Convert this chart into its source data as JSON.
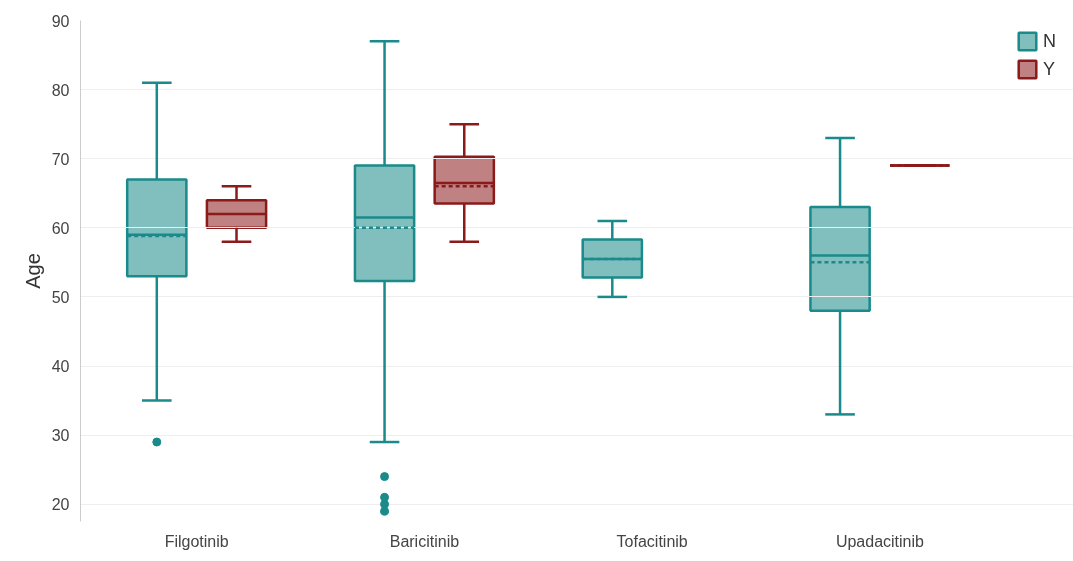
{
  "chart_data": {
    "type": "box",
    "ylabel": "Age",
    "categories": [
      "Filgotinib",
      "Baricitinib",
      "Tofacitinib",
      "Upadacitinib"
    ],
    "ylim": [
      17.5,
      90
    ],
    "yticks": [
      20,
      30,
      40,
      50,
      60,
      70,
      80,
      90
    ],
    "grid": "y",
    "legend": "top right",
    "series": [
      {
        "name": "N",
        "color": "#1a8a8a",
        "boxes": [
          {
            "low": 35,
            "q1": 53,
            "median": 59,
            "q3": 67,
            "high": 81,
            "mean": 58.8,
            "outliers": [
              29
            ]
          },
          {
            "low": 29,
            "q1": 52.3,
            "median": 61.5,
            "q3": 69,
            "high": 87,
            "mean": 60,
            "outliers": [
              24,
              21,
              20,
              19
            ]
          },
          {
            "low": 50,
            "q1": 52.8,
            "median": 55.5,
            "q3": 58.3,
            "high": 61,
            "mean": 55.5
          },
          {
            "low": 33,
            "q1": 48,
            "median": 56,
            "q3": 63,
            "high": 73,
            "mean": 55
          }
        ]
      },
      {
        "name": "Y",
        "color": "#8b1a1a",
        "boxes": [
          {
            "low": 58,
            "q1": 60,
            "median": 62,
            "q3": 64,
            "high": 66
          },
          {
            "low": 58,
            "q1": 63.5,
            "median": 66.5,
            "q3": 70.3,
            "high": 75,
            "mean": 66
          },
          null,
          {
            "low": 69,
            "q1": 69,
            "median": 69,
            "q3": 69,
            "high": 69,
            "mean": 69
          }
        ]
      }
    ]
  }
}
